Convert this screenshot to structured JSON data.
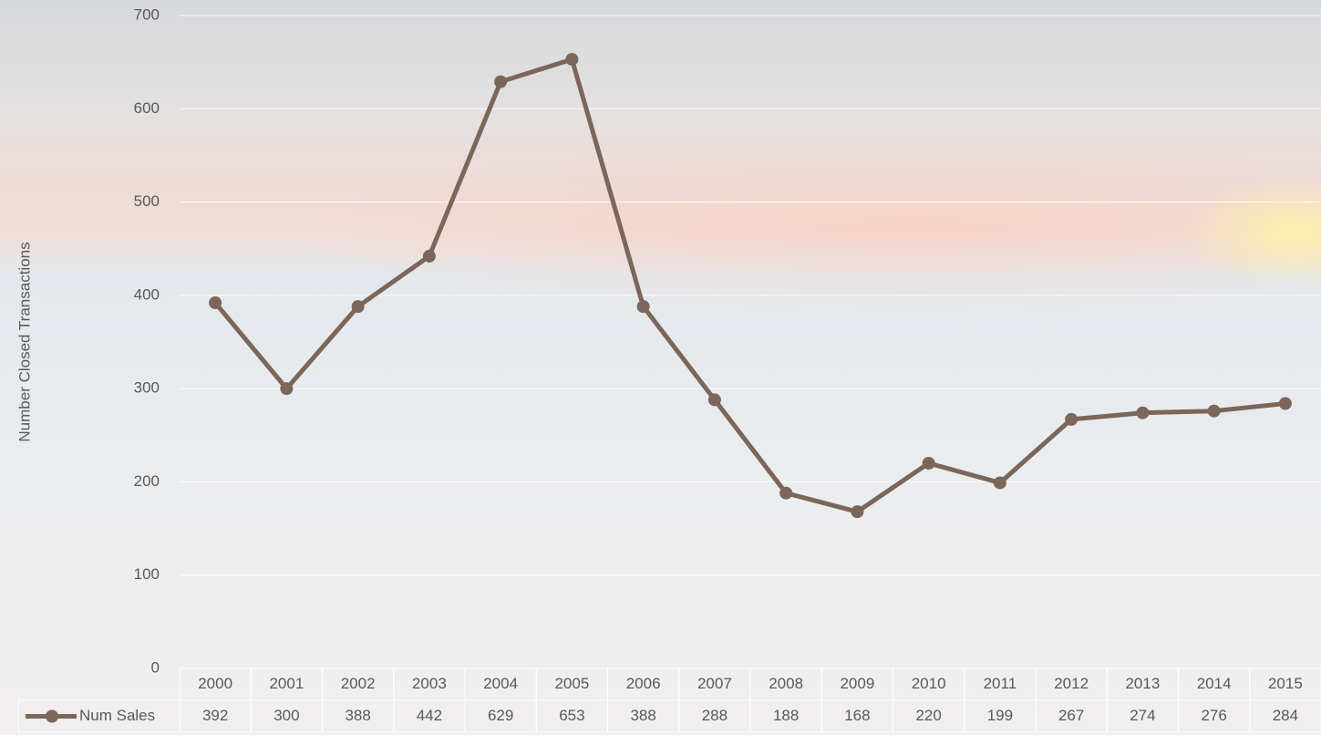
{
  "chart_data": {
    "type": "line",
    "y_label": "Number Closed Transactions",
    "categories": [
      "2000",
      "2001",
      "2002",
      "2003",
      "2004",
      "2005",
      "2006",
      "2007",
      "2008",
      "2009",
      "2010",
      "2011",
      "2012",
      "2013",
      "2014",
      "2015"
    ],
    "series": [
      {
        "name": "Num Sales",
        "color": "#7b6659",
        "values": [
          392,
          300,
          388,
          442,
          629,
          653,
          388,
          288,
          188,
          168,
          220,
          199,
          267,
          274,
          276,
          284
        ]
      }
    ],
    "ylim": [
      0,
      700
    ],
    "yticks": [
      0,
      100,
      200,
      300,
      400,
      500,
      600,
      700
    ],
    "grid": true,
    "data_table": true
  }
}
